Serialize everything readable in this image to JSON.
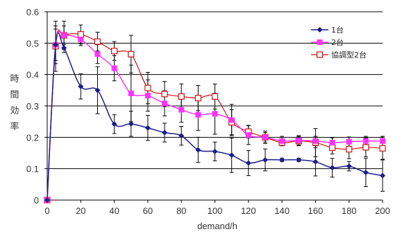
{
  "chart_data": {
    "type": "line",
    "xlabel": "demand/h",
    "ylabel": [
      "時",
      "間",
      "効",
      "率"
    ],
    "xlim": [
      0,
      200
    ],
    "ylim": [
      0,
      0.6
    ],
    "x_ticks": [
      "0",
      "20",
      "40",
      "60",
      "80",
      "100",
      "120",
      "140",
      "160",
      "180",
      "200"
    ],
    "y_ticks": [
      "0",
      "0.1",
      "0.2",
      "0.3",
      "0.4",
      "0.5",
      "0.6"
    ],
    "grid": "horizontal",
    "legend_position": "top-right",
    "x": [
      0,
      5,
      10,
      20,
      30,
      40,
      50,
      60,
      70,
      80,
      90,
      100,
      110,
      120,
      130,
      140,
      150,
      160,
      170,
      180,
      190,
      200
    ],
    "series": [
      {
        "name": "1台",
        "color": "#1c1c8c",
        "marker": "diamond",
        "values": [
          0,
          0.495,
          0.485,
          0.362,
          0.35,
          0.242,
          0.243,
          0.23,
          0.215,
          0.205,
          0.16,
          0.155,
          0.143,
          0.118,
          0.128,
          0.128,
          0.128,
          0.122,
          0.103,
          0.108,
          0.088,
          0.078
        ],
        "errors": [
          0,
          0.05,
          0.015,
          0.04,
          0.075,
          0.03,
          0.04,
          0.04,
          0.03,
          0.03,
          0.04,
          0.03,
          0.055,
          0.04,
          0.035,
          0.005,
          0.005,
          0.045,
          0.03,
          0.015,
          0.045,
          0.05
        ]
      },
      {
        "name": "2台",
        "color": "#ff33ff",
        "marker": "square",
        "values": [
          0,
          0.495,
          0.525,
          0.512,
          0.465,
          0.42,
          0.34,
          0.333,
          0.308,
          0.288,
          0.272,
          0.275,
          0.255,
          0.207,
          0.2,
          0.188,
          0.19,
          0.188,
          0.183,
          0.186,
          0.188,
          0.188
        ],
        "errors": [
          0,
          0.06,
          0.03,
          0.02,
          0.03,
          0.04,
          0.09,
          0.05,
          0.04,
          0.04,
          0.05,
          0.065,
          0.05,
          0.03,
          0.02,
          0.015,
          0.015,
          0.015,
          0.015,
          0.015,
          0.015,
          0.015
        ]
      },
      {
        "name": "協調型2台",
        "color": "#cc1111",
        "marker": "open-square",
        "values": [
          0,
          0.49,
          0.525,
          0.528,
          0.505,
          0.475,
          0.465,
          0.357,
          0.338,
          0.33,
          0.325,
          0.33,
          0.248,
          0.218,
          0.2,
          0.183,
          0.188,
          0.183,
          0.167,
          0.162,
          0.168,
          0.165
        ],
        "errors": [
          0,
          0.08,
          0.045,
          0.03,
          0.03,
          0.03,
          0.06,
          0.05,
          0.04,
          0.04,
          0.04,
          0.04,
          0.04,
          0.02,
          0.015,
          0.01,
          0.015,
          0.045,
          0.02,
          0.03,
          0.03,
          0.035
        ]
      }
    ]
  }
}
